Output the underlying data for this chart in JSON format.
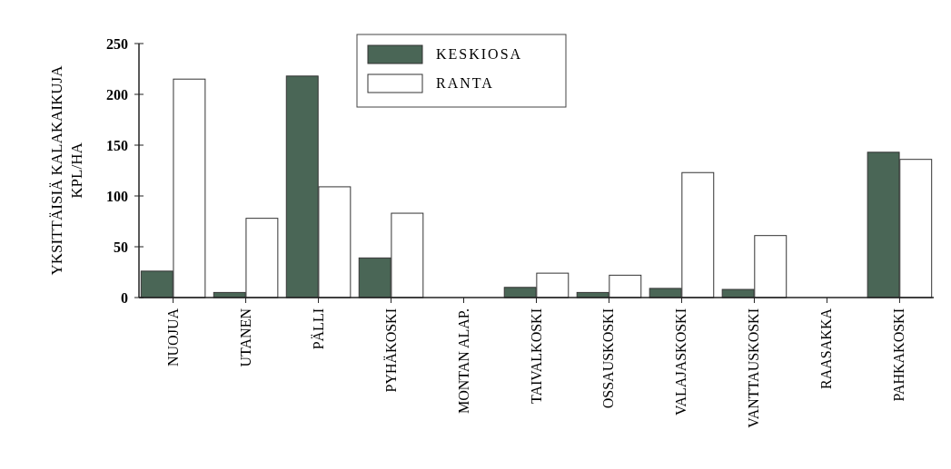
{
  "chart_data": {
    "type": "bar",
    "ylabel": "YKSITTÄISIÄ KALAKAIKUJA\nKPL/HA",
    "categories": [
      "NUOJUA",
      "UTANEN",
      "PÄLLI",
      "PYHÄKOSKI",
      "MONTAN ALAP.",
      "TAIVALKOSKI",
      "OSSAUSKOSKI",
      "VALAJASKOSKI",
      "VANTTAUSKOSKI",
      "RAASAKKA",
      "PAHKAKOSKI"
    ],
    "series": [
      {
        "name": "KESKIOSA",
        "color": "#4a6656",
        "values": [
          26,
          5,
          218,
          39,
          0,
          10,
          5,
          9,
          8,
          0,
          143
        ]
      },
      {
        "name": "RANTA",
        "color": "#ffffff",
        "values": [
          215,
          78,
          109,
          83,
          0,
          24,
          22,
          123,
          61,
          0,
          136
        ]
      }
    ],
    "ylim": [
      0,
      250
    ],
    "yticks": [
      0,
      50,
      100,
      150,
      200,
      250
    ],
    "legend": "top"
  }
}
